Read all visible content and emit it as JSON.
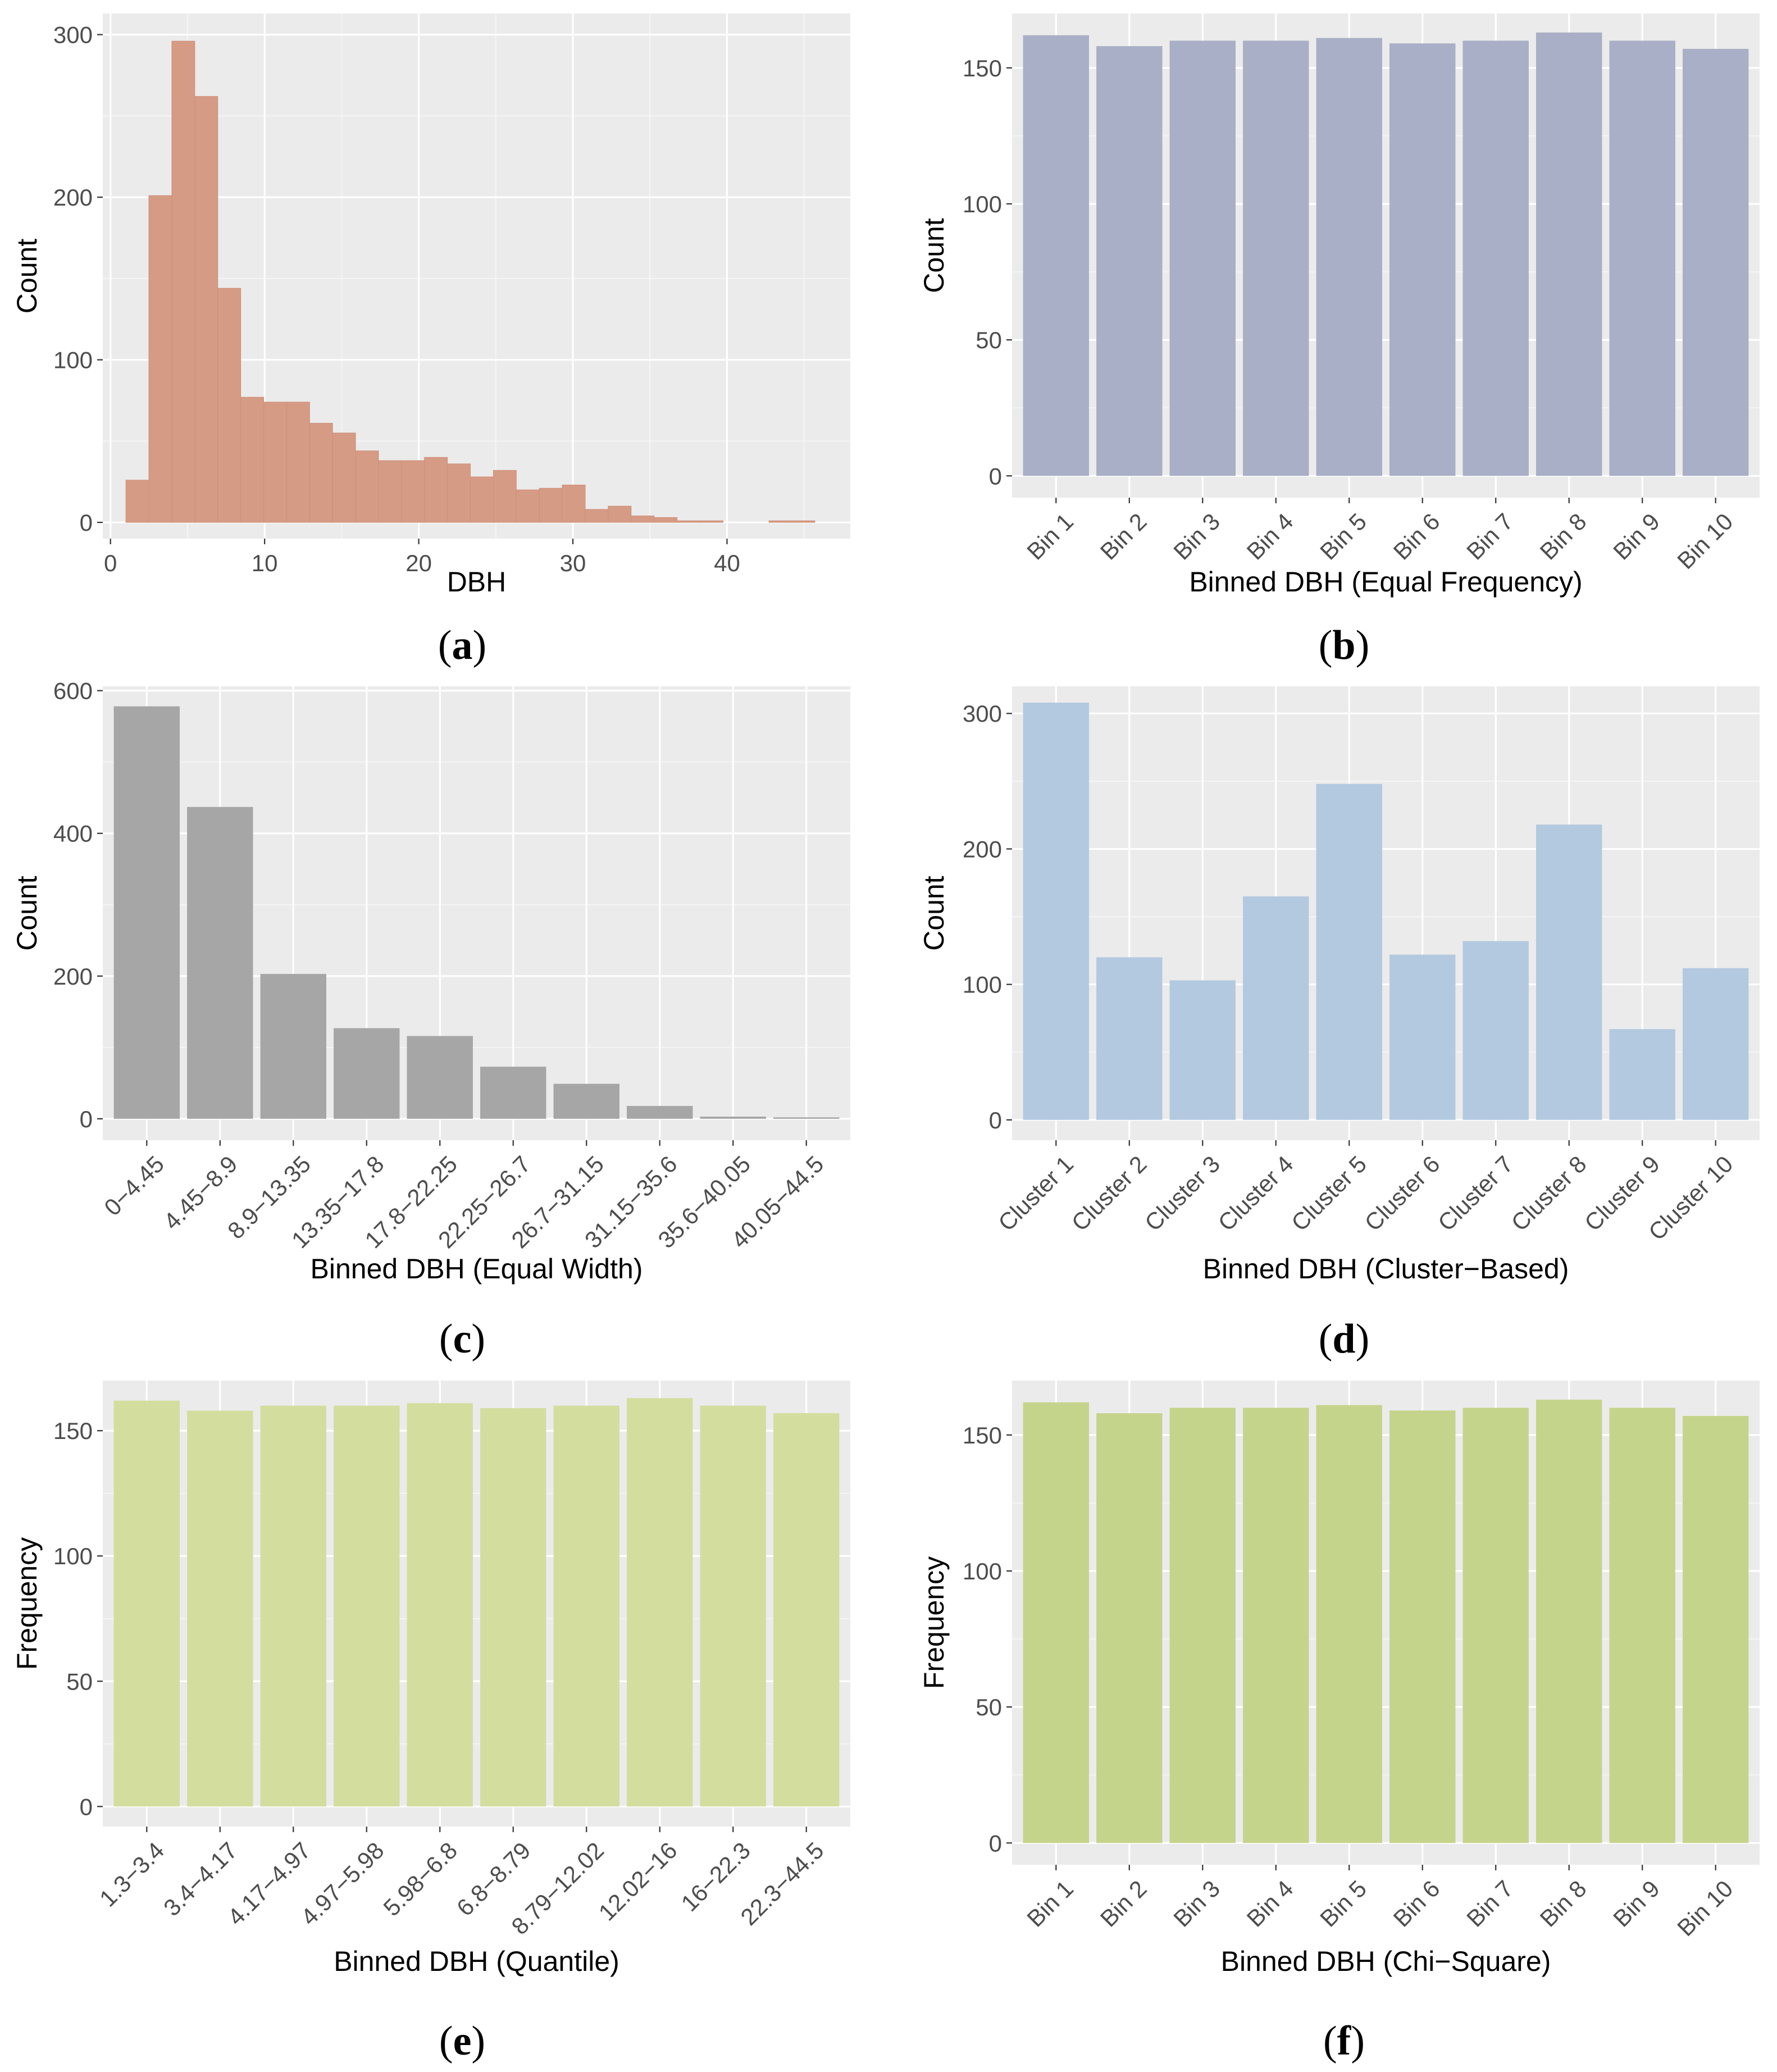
{
  "chart_data": [
    {
      "id": "a",
      "panel_label": "a",
      "type": "bar",
      "subtype": "histogram",
      "xlabel": "DBH",
      "ylabel": "Count",
      "xlim": [
        -0.5,
        48
      ],
      "ylim": [
        -10,
        313
      ],
      "x_ticks": [
        0,
        10,
        20,
        30,
        40
      ],
      "x_tick_labels": [
        "0",
        "10",
        "20",
        "30",
        "40"
      ],
      "y_ticks": [
        0,
        100,
        200,
        300
      ],
      "y_tick_labels": [
        "0",
        "100",
        "200",
        "300"
      ],
      "bin_start": 1.0,
      "bin_width": 1.49,
      "values": [
        26,
        201,
        296,
        262,
        144,
        77,
        74,
        74,
        61,
        55,
        44,
        38,
        38,
        40,
        36,
        28,
        32,
        20,
        21,
        23,
        8,
        10,
        4,
        3,
        1,
        1,
        0,
        0,
        1,
        1
      ],
      "fill": "#d59b85",
      "gridlines": true
    },
    {
      "id": "b",
      "panel_label": "b",
      "type": "bar",
      "xlabel": "Binned DBH (Equal Frequency)",
      "ylabel": "Count",
      "ylim": [
        -8,
        170
      ],
      "y_ticks": [
        0,
        50,
        100,
        150
      ],
      "y_tick_labels": [
        "0",
        "50",
        "100",
        "150"
      ],
      "categories": [
        "Bin 1",
        "Bin 2",
        "Bin 3",
        "Bin 4",
        "Bin 5",
        "Bin 6",
        "Bin 7",
        "Bin 8",
        "Bin 9",
        "Bin 10"
      ],
      "values": [
        162,
        158,
        160,
        160,
        161,
        159,
        160,
        163,
        160,
        157
      ],
      "fill": "#a9afc6",
      "rotate_labels": true,
      "gridlines": true
    },
    {
      "id": "c",
      "panel_label": "c",
      "type": "bar",
      "xlabel": "Binned DBH (Equal Width)",
      "ylabel": "Count",
      "ylim": [
        -30,
        606
      ],
      "y_ticks": [
        0,
        200,
        400,
        600
      ],
      "y_tick_labels": [
        "0",
        "200",
        "400",
        "600"
      ],
      "categories": [
        "0−4.45",
        "4.45−8.9",
        "8.9−13.35",
        "13.35−17.8",
        "17.8−22.25",
        "22.25−26.7",
        "26.7−31.15",
        "31.15−35.6",
        "35.6−40.05",
        "40.05−44.5"
      ],
      "values": [
        578,
        437,
        203,
        127,
        116,
        73,
        49,
        18,
        3,
        2
      ],
      "fill": "#a6a6a6",
      "rotate_labels": true,
      "gridlines": true
    },
    {
      "id": "d",
      "panel_label": "d",
      "type": "bar",
      "xlabel": "Binned DBH (Cluster−Based)",
      "ylabel": "Count",
      "ylim": [
        -15,
        320
      ],
      "y_ticks": [
        0,
        100,
        200,
        300
      ],
      "y_tick_labels": [
        "0",
        "100",
        "200",
        "300"
      ],
      "categories": [
        "Cluster 1",
        "Cluster 2",
        "Cluster 3",
        "Cluster 4",
        "Cluster 5",
        "Cluster 6",
        "Cluster 7",
        "Cluster 8",
        "Cluster 9",
        "Cluster 10"
      ],
      "values": [
        308,
        120,
        103,
        165,
        248,
        122,
        132,
        218,
        67,
        112
      ],
      "fill": "#b3c9e0",
      "rotate_labels": true,
      "gridlines": true
    },
    {
      "id": "e",
      "panel_label": "e",
      "type": "bar",
      "xlabel": "Binned DBH (Quantile)",
      "ylabel": "Frequency",
      "ylim": [
        -8,
        170
      ],
      "y_ticks": [
        0,
        50,
        100,
        150
      ],
      "y_tick_labels": [
        "0",
        "50",
        "100",
        "150"
      ],
      "categories": [
        "1.3−3.4",
        "3.4−4.17",
        "4.17−4.97",
        "4.97−5.98",
        "5.98−6.8",
        "6.8−8.79",
        "8.79−12.02",
        "12.02−16",
        "16−22.3",
        "22.3−44.5"
      ],
      "values": [
        162,
        158,
        160,
        160,
        161,
        159,
        160,
        163,
        160,
        157
      ],
      "fill": "#d3de9e",
      "rotate_labels": true,
      "gridlines": true
    },
    {
      "id": "f",
      "panel_label": "f",
      "type": "bar",
      "xlabel": "Binned DBH (Chi−Square)",
      "ylabel": "Frequency",
      "ylim": [
        -8,
        170
      ],
      "y_ticks": [
        0,
        50,
        100,
        150
      ],
      "y_tick_labels": [
        "0",
        "50",
        "100",
        "150"
      ],
      "categories": [
        "Bin 1",
        "Bin 2",
        "Bin 3",
        "Bin 4",
        "Bin 5",
        "Bin 6",
        "Bin 7",
        "Bin 8",
        "Bin 9",
        "Bin 10"
      ],
      "values": [
        162,
        158,
        160,
        160,
        161,
        159,
        160,
        163,
        160,
        157
      ],
      "fill": "#c5d48b",
      "rotate_labels": true,
      "gridlines": true
    }
  ]
}
